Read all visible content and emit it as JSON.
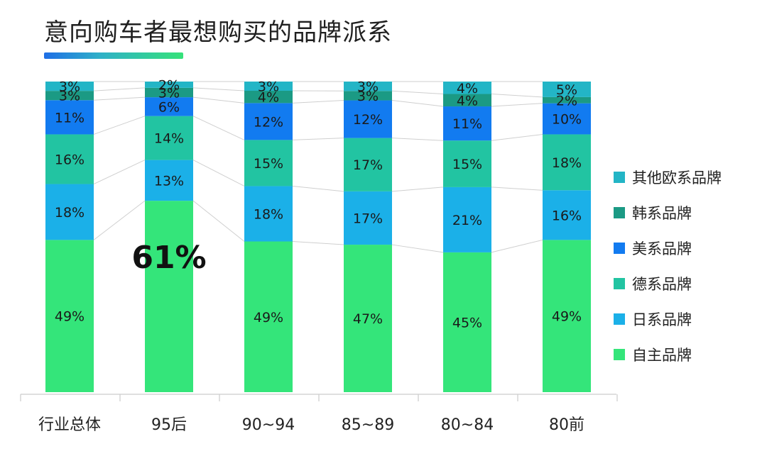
{
  "title": "意向购车者最想购买的品牌派系",
  "colors": {
    "accent_gradient": [
      "#1f6fe6",
      "#36e27a"
    ],
    "grid": "#cccccc",
    "connector": "#cfcfcf"
  },
  "chart_data": {
    "type": "bar",
    "stacked": true,
    "normalized_to": 100,
    "categories": [
      "行业总体",
      "95后",
      "90~94",
      "85~89",
      "80~84",
      "80前"
    ],
    "series": [
      {
        "name": "自主品牌",
        "color": "#34e57a",
        "values": [
          49,
          61,
          49,
          47,
          45,
          49
        ]
      },
      {
        "name": "日系品牌",
        "color": "#1bb0e8",
        "values": [
          18,
          13,
          18,
          17,
          21,
          16
        ]
      },
      {
        "name": "德系品牌",
        "color": "#22c4a2",
        "values": [
          16,
          14,
          15,
          17,
          15,
          18
        ]
      },
      {
        "name": "美系品牌",
        "color": "#127bf0",
        "values": [
          11,
          6,
          12,
          12,
          11,
          10
        ]
      },
      {
        "name": "韩系品牌",
        "color": "#1b9a84",
        "values": [
          3,
          3,
          4,
          3,
          4,
          2
        ]
      },
      {
        "name": "其他欧系品牌",
        "color": "#23b5c6",
        "values": [
          3,
          2,
          3,
          3,
          4,
          5
        ]
      }
    ],
    "highlight": {
      "category": "95后",
      "series": "自主品牌",
      "label": "61%"
    },
    "legend_position": "right",
    "legend_order": [
      "其他欧系品牌",
      "韩系品牌",
      "美系品牌",
      "德系品牌",
      "日系品牌",
      "自主品牌"
    ],
    "value_suffix": "%",
    "connector_lines": true,
    "grid": false
  }
}
